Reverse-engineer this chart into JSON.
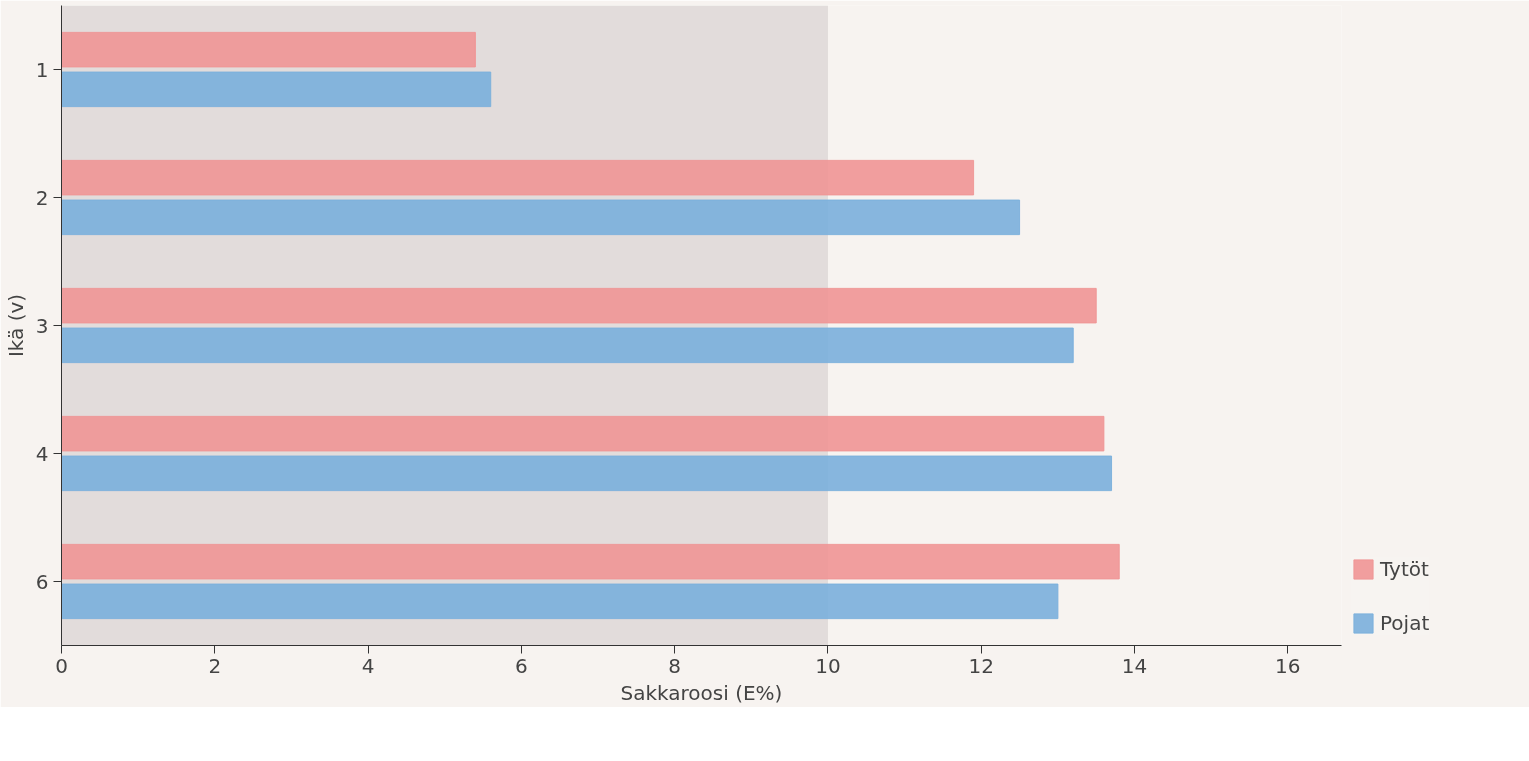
{
  "chart_data": {
    "type": "bar",
    "orientation": "horizontal",
    "xlabel": "Sakkaroosi (E%)",
    "ylabel": "Ikä (v)",
    "categories": [
      "1",
      "2",
      "3",
      "4",
      "6"
    ],
    "series": [
      {
        "name": "Tytöt",
        "color": "#f09595",
        "values": [
          5.4,
          11.9,
          13.5,
          13.6,
          13.8
        ]
      },
      {
        "name": "Pojat",
        "color": "#7aafdb",
        "values": [
          5.6,
          12.5,
          13.2,
          13.7,
          13.0
        ]
      }
    ],
    "xlim": [
      0,
      16.7
    ],
    "xticks": [
      0,
      2,
      4,
      6,
      8,
      10,
      12,
      14,
      16
    ],
    "bands": [
      {
        "axis": "x",
        "from": 0,
        "to": 10,
        "color": "#c8c2c2"
      }
    ],
    "grid": false,
    "legend": "right"
  }
}
